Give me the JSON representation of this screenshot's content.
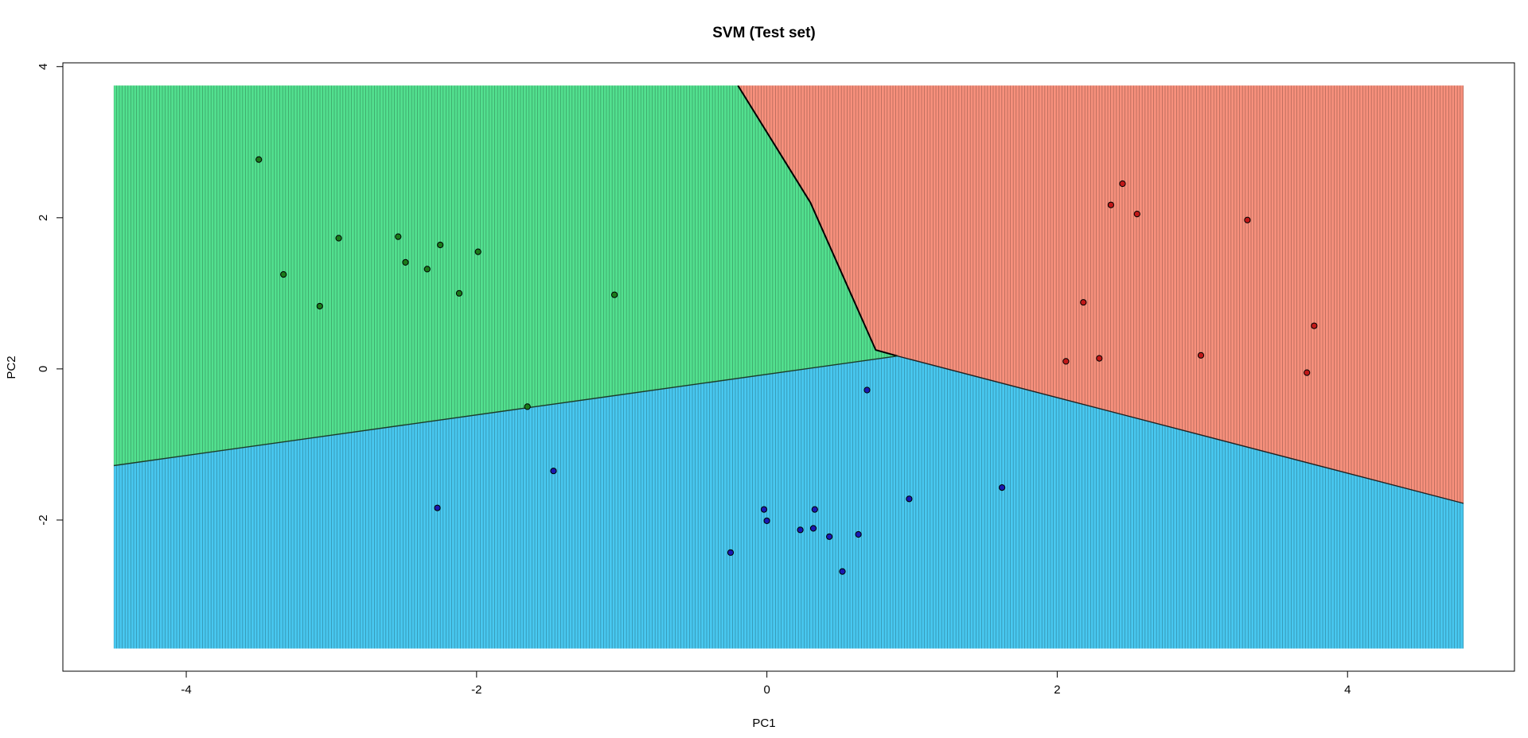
{
  "chart_data": {
    "type": "scatter",
    "title": "SVM (Test set)",
    "xlabel": "PC1",
    "ylabel": "PC2",
    "xlim": [
      -4.85,
      5.15
    ],
    "ylim": [
      -4.0,
      4.05
    ],
    "x_ticks": [
      -4,
      -2,
      0,
      2,
      4
    ],
    "y_ticks": [
      -2,
      0,
      2,
      4
    ],
    "x_tick_labels": [
      "-4",
      "-2",
      "0",
      "2",
      "4"
    ],
    "y_tick_labels": [
      "-2",
      "0",
      "2",
      "4"
    ],
    "grid": false,
    "grid_range": {
      "x": [
        -4.5,
        4.8
      ],
      "y": [
        -3.7,
        3.75
      ]
    },
    "region_colors": {
      "green": "#52e08f",
      "red": "#f7907c",
      "blue": "#48c8f0"
    },
    "point_colors": {
      "green": "#1a7a1a",
      "red": "#c01818",
      "blue": "#1a1ab0"
    },
    "decision_boundaries": {
      "triple_point": [
        0.9,
        0.17
      ],
      "green_red": [
        [
          -0.2,
          3.75
        ],
        [
          0.3,
          2.2
        ],
        [
          0.75,
          0.25
        ],
        [
          0.9,
          0.17
        ]
      ],
      "green_blue": [
        [
          -4.5,
          -1.28
        ],
        [
          0.9,
          0.17
        ]
      ],
      "red_blue": [
        [
          0.9,
          0.17
        ],
        [
          4.8,
          -1.78
        ]
      ]
    },
    "series": [
      {
        "name": "green",
        "points": [
          [
            -3.5,
            2.77
          ],
          [
            -3.33,
            1.25
          ],
          [
            -3.08,
            0.83
          ],
          [
            -2.95,
            1.73
          ],
          [
            -2.54,
            1.75
          ],
          [
            -2.49,
            1.41
          ],
          [
            -2.34,
            1.32
          ],
          [
            -2.25,
            1.64
          ],
          [
            -2.12,
            1.0
          ],
          [
            -1.99,
            1.55
          ],
          [
            -1.05,
            0.98
          ],
          [
            -1.65,
            -0.5
          ]
        ]
      },
      {
        "name": "red",
        "points": [
          [
            2.45,
            2.45
          ],
          [
            2.37,
            2.17
          ],
          [
            2.55,
            2.05
          ],
          [
            3.31,
            1.97
          ],
          [
            2.18,
            0.88
          ],
          [
            3.77,
            0.57
          ],
          [
            2.06,
            0.1
          ],
          [
            2.29,
            0.14
          ],
          [
            2.99,
            0.18
          ],
          [
            3.72,
            -0.05
          ]
        ]
      },
      {
        "name": "blue",
        "points": [
          [
            0.69,
            -0.28
          ],
          [
            1.62,
            -1.57
          ],
          [
            -1.47,
            -1.35
          ],
          [
            -2.27,
            -1.84
          ],
          [
            -0.02,
            -1.86
          ],
          [
            0.33,
            -1.86
          ],
          [
            0.0,
            -2.01
          ],
          [
            0.98,
            -1.72
          ],
          [
            0.23,
            -2.13
          ],
          [
            0.32,
            -2.11
          ],
          [
            0.43,
            -2.22
          ],
          [
            0.63,
            -2.19
          ],
          [
            -0.25,
            -2.43
          ],
          [
            0.52,
            -2.68
          ]
        ]
      }
    ]
  }
}
